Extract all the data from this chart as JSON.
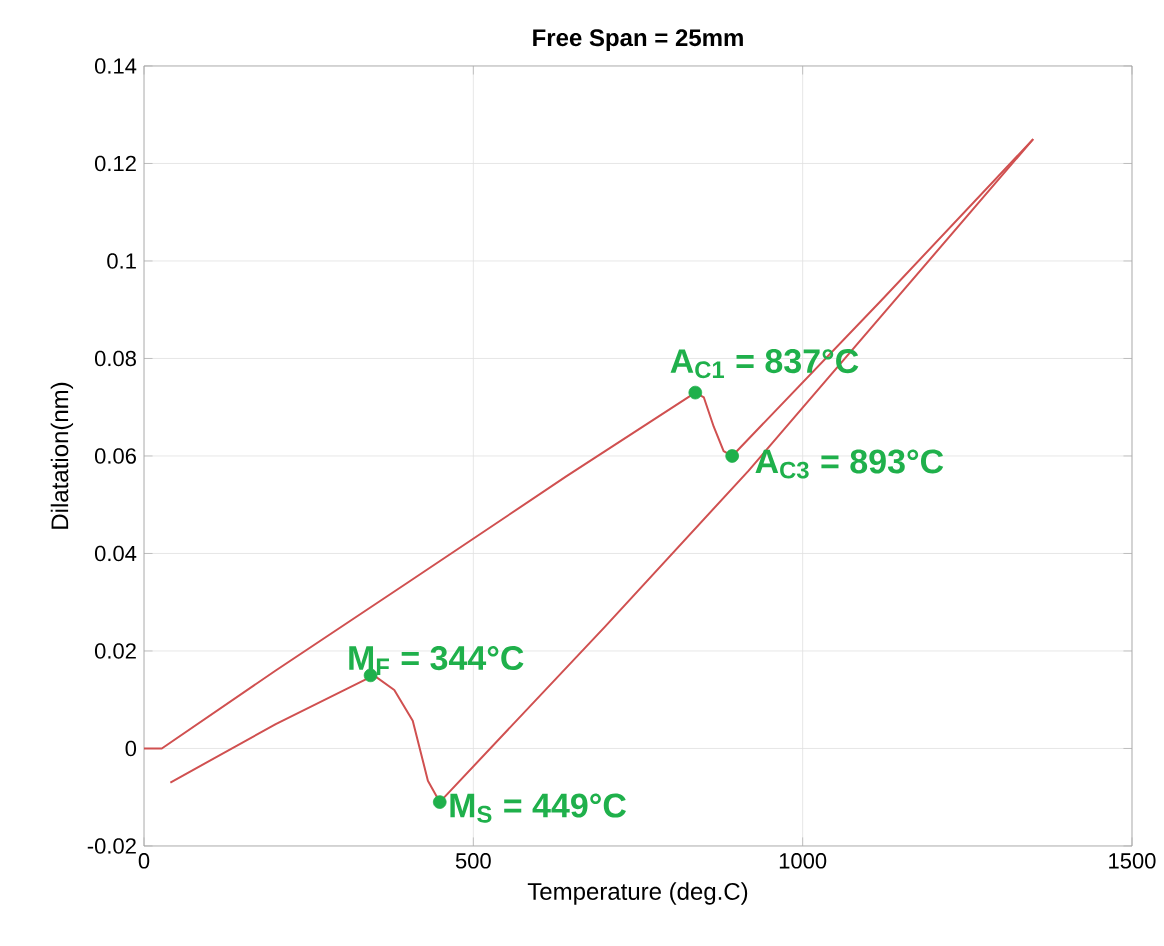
{
  "chart_data": {
    "type": "line",
    "title": "Free Span = 25mm",
    "xlabel": "Temperature (deg.C)",
    "ylabel": "Dilatation(nm)",
    "xlim": [
      0,
      1500
    ],
    "ylim": [
      -0.02,
      0.14
    ],
    "xticks": [
      0,
      500,
      1000,
      1500
    ],
    "yticks": [
      -0.02,
      0,
      0.02,
      0.04,
      0.06,
      0.08,
      0.1,
      0.12,
      0.14
    ],
    "grid": true,
    "series": [
      {
        "color": "#d05050",
        "x": [
          0,
          27,
          200,
          400,
          641,
          837,
          850,
          865,
          880,
          893,
          1120,
          1350
        ],
        "values": [
          0,
          0,
          0.016,
          0.034,
          0.0558,
          0.073,
          0.072,
          0.066,
          0.061,
          0.06,
          0.092,
          0.125
        ]
      },
      {
        "color": "#d05050",
        "x": [
          1350,
          918,
          700,
          449,
          431,
          408,
          380,
          349,
          200,
          40
        ],
        "values": [
          0.125,
          0.057,
          0.025,
          -0.011,
          -0.0066,
          0.0057,
          0.012,
          0.015,
          0.005,
          -0.007
        ]
      },
      {
        "type": "scatter",
        "color": "#1fb04b",
        "marker": "circle",
        "x": [
          837,
          893,
          344,
          449
        ],
        "values": [
          0.073,
          0.06,
          0.015,
          -0.011
        ]
      }
    ],
    "annotations": [
      {
        "text": "A$_{C1}$ = 837°C",
        "x": 837,
        "y": 0.073
      },
      {
        "text": "A$_{C3}$ = 893°C",
        "x": 893,
        "y": 0.06
      },
      {
        "text": "M$_{F}$ = 344°C",
        "x": 344,
        "y": 0.015
      },
      {
        "text": "M$_{S}$ = 449°C",
        "x": 449,
        "y": -0.011
      }
    ]
  }
}
